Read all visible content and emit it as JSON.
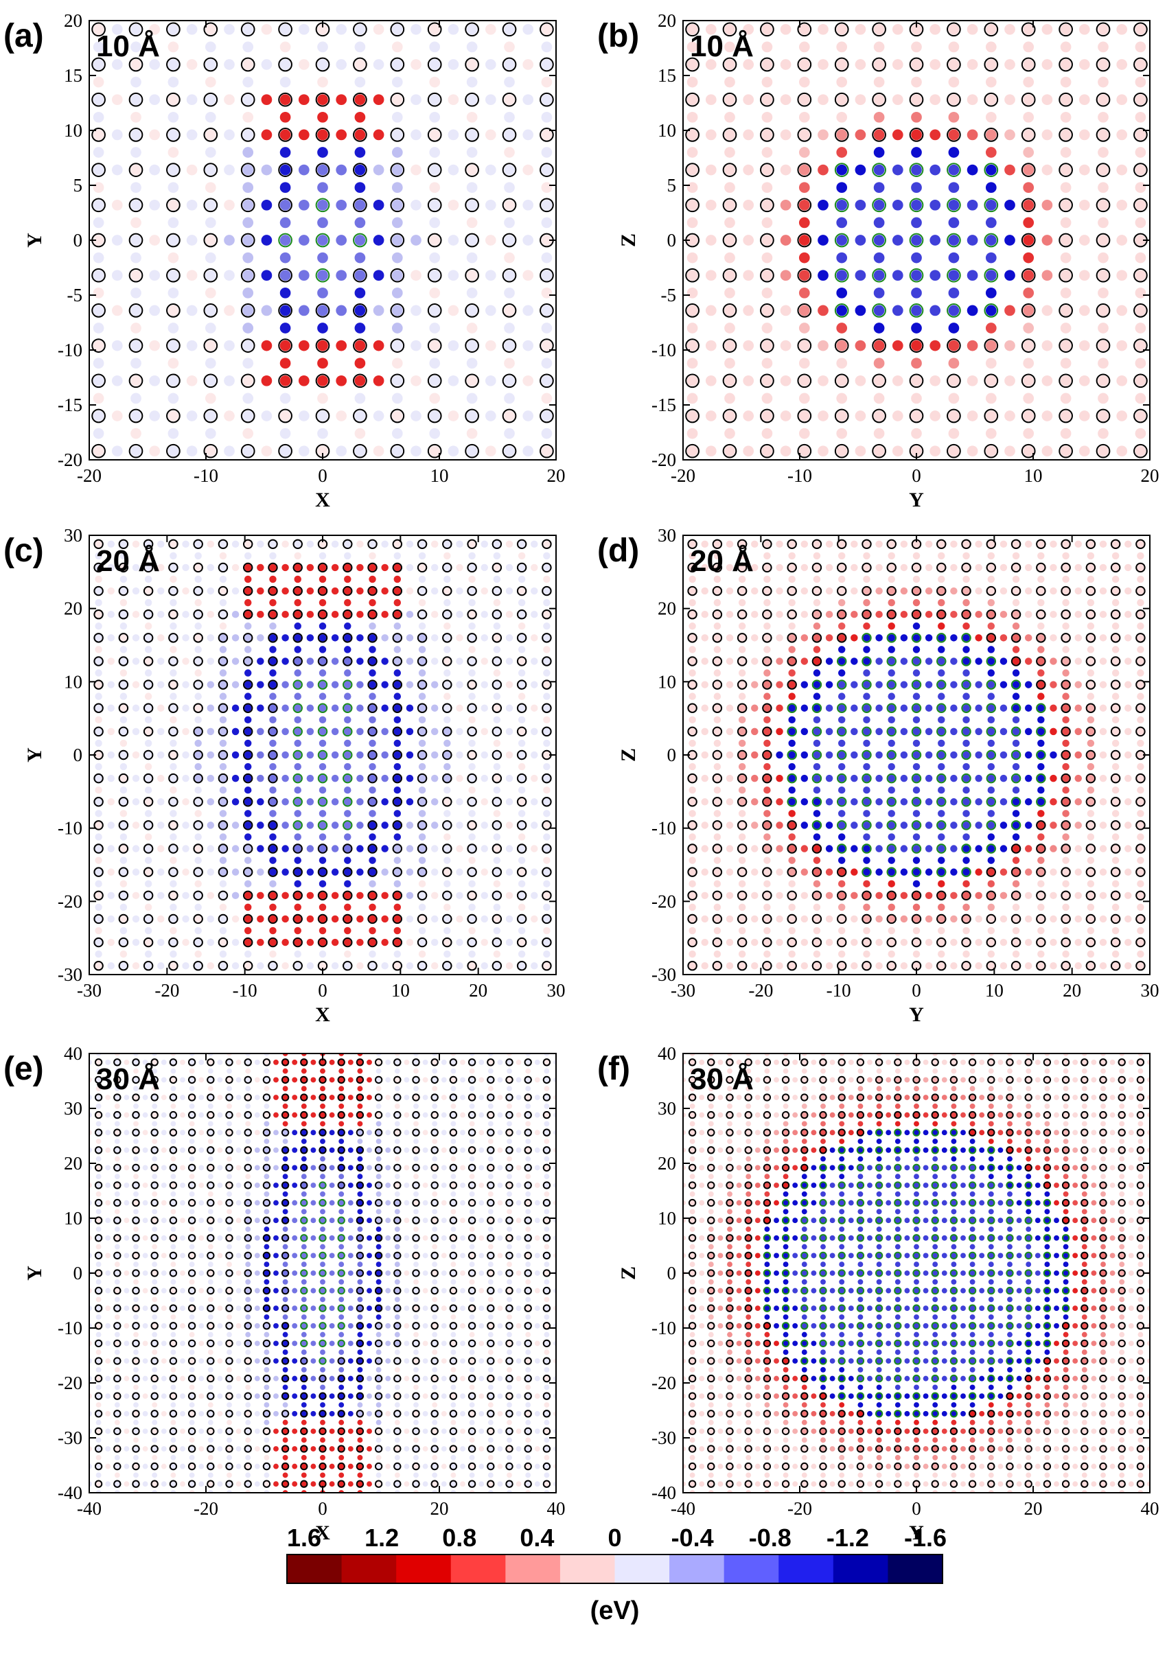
{
  "colors": {
    "positive": "#e00000",
    "negative": "#0000cc",
    "open_circle": "#000000",
    "inner_circle": "#1a8a1a",
    "frame": "#000000"
  },
  "chart_data": [
    {
      "type": "scatter",
      "panel_label": "(a)",
      "size_label": "10 Å",
      "plane": "xy",
      "orientation": "elongated-vertical",
      "xlabel": "X",
      "ylabel": "Y",
      "xlim": [
        -20,
        20
      ],
      "ylim": [
        -20,
        20
      ],
      "xticks": [
        -20,
        -10,
        0,
        10,
        20
      ],
      "yticks": [
        -20,
        -15,
        -10,
        -5,
        0,
        5,
        10,
        15,
        20
      ],
      "lattice_spacing": 3.2,
      "radius_x": 6,
      "radius_y": 10
    },
    {
      "type": "scatter",
      "panel_label": "(b)",
      "size_label": "10 Å",
      "plane": "yz",
      "orientation": "round",
      "xlabel": "Y",
      "ylabel": "Z",
      "xlim": [
        -20,
        20
      ],
      "ylim": [
        -20,
        20
      ],
      "xticks": [
        -20,
        -10,
        0,
        10,
        20
      ],
      "yticks": [
        -20,
        -15,
        -10,
        -5,
        0,
        5,
        10,
        15,
        20
      ],
      "lattice_spacing": 3.2,
      "radius_x": 10,
      "radius_y": 10
    },
    {
      "type": "scatter",
      "panel_label": "(c)",
      "size_label": "20 Å",
      "plane": "xy",
      "orientation": "elongated-vertical",
      "xlabel": "X",
      "ylabel": "Y",
      "xlim": [
        -30,
        30
      ],
      "ylim": [
        -30,
        30
      ],
      "xticks": [
        -30,
        -20,
        -10,
        0,
        10,
        20,
        30
      ],
      "yticks": [
        -30,
        -20,
        -10,
        0,
        10,
        20,
        30
      ],
      "lattice_spacing": 3.2,
      "radius_x": 12,
      "radius_y": 20
    },
    {
      "type": "scatter",
      "panel_label": "(d)",
      "size_label": "20 Å",
      "plane": "yz",
      "orientation": "round",
      "xlabel": "Y",
      "ylabel": "Z",
      "xlim": [
        -30,
        30
      ],
      "ylim": [
        -30,
        30
      ],
      "xticks": [
        -30,
        -20,
        -10,
        0,
        10,
        20,
        30
      ],
      "yticks": [
        -30,
        -20,
        -10,
        0,
        10,
        20,
        30
      ],
      "lattice_spacing": 3.2,
      "radius_x": 19,
      "radius_y": 19
    },
    {
      "type": "scatter",
      "panel_label": "(e)",
      "size_label": "30 Å",
      "plane": "xy",
      "orientation": "elongated-vertical",
      "xlabel": "X",
      "ylabel": "Y",
      "xlim": [
        -40,
        40
      ],
      "ylim": [
        -40,
        40
      ],
      "xticks": [
        -40,
        -20,
        0,
        20,
        40
      ],
      "yticks": [
        -40,
        -30,
        -20,
        -10,
        0,
        10,
        20,
        30,
        40
      ],
      "lattice_spacing": 3.2,
      "radius_x": 10,
      "radius_y": 30
    },
    {
      "type": "scatter",
      "panel_label": "(f)",
      "size_label": "30 Å",
      "plane": "yz",
      "orientation": "round",
      "xlabel": "Y",
      "ylabel": "Z",
      "xlim": [
        -40,
        40
      ],
      "ylim": [
        -40,
        40
      ],
      "xticks": [
        -40,
        -20,
        0,
        20,
        40
      ],
      "yticks": [
        -40,
        -30,
        -20,
        -10,
        0,
        10,
        20,
        30,
        40
      ],
      "lattice_spacing": 3.2,
      "radius_x": 29,
      "radius_y": 29
    }
  ],
  "colorbar": {
    "ticks": [
      "1.6",
      "1.2",
      "0.8",
      "0.4",
      "0",
      "-0.4",
      "-0.8",
      "-1.2",
      "-1.6"
    ],
    "range": [
      1.6,
      -1.6
    ],
    "unit": "(eV)",
    "colors": [
      "#7a0000",
      "#b00000",
      "#e00000",
      "#ff4040",
      "#ff9a9a",
      "#ffd6d6",
      "#e8e8ff",
      "#aaaaff",
      "#6060ff",
      "#2020ee",
      "#0000b0",
      "#000060"
    ]
  }
}
